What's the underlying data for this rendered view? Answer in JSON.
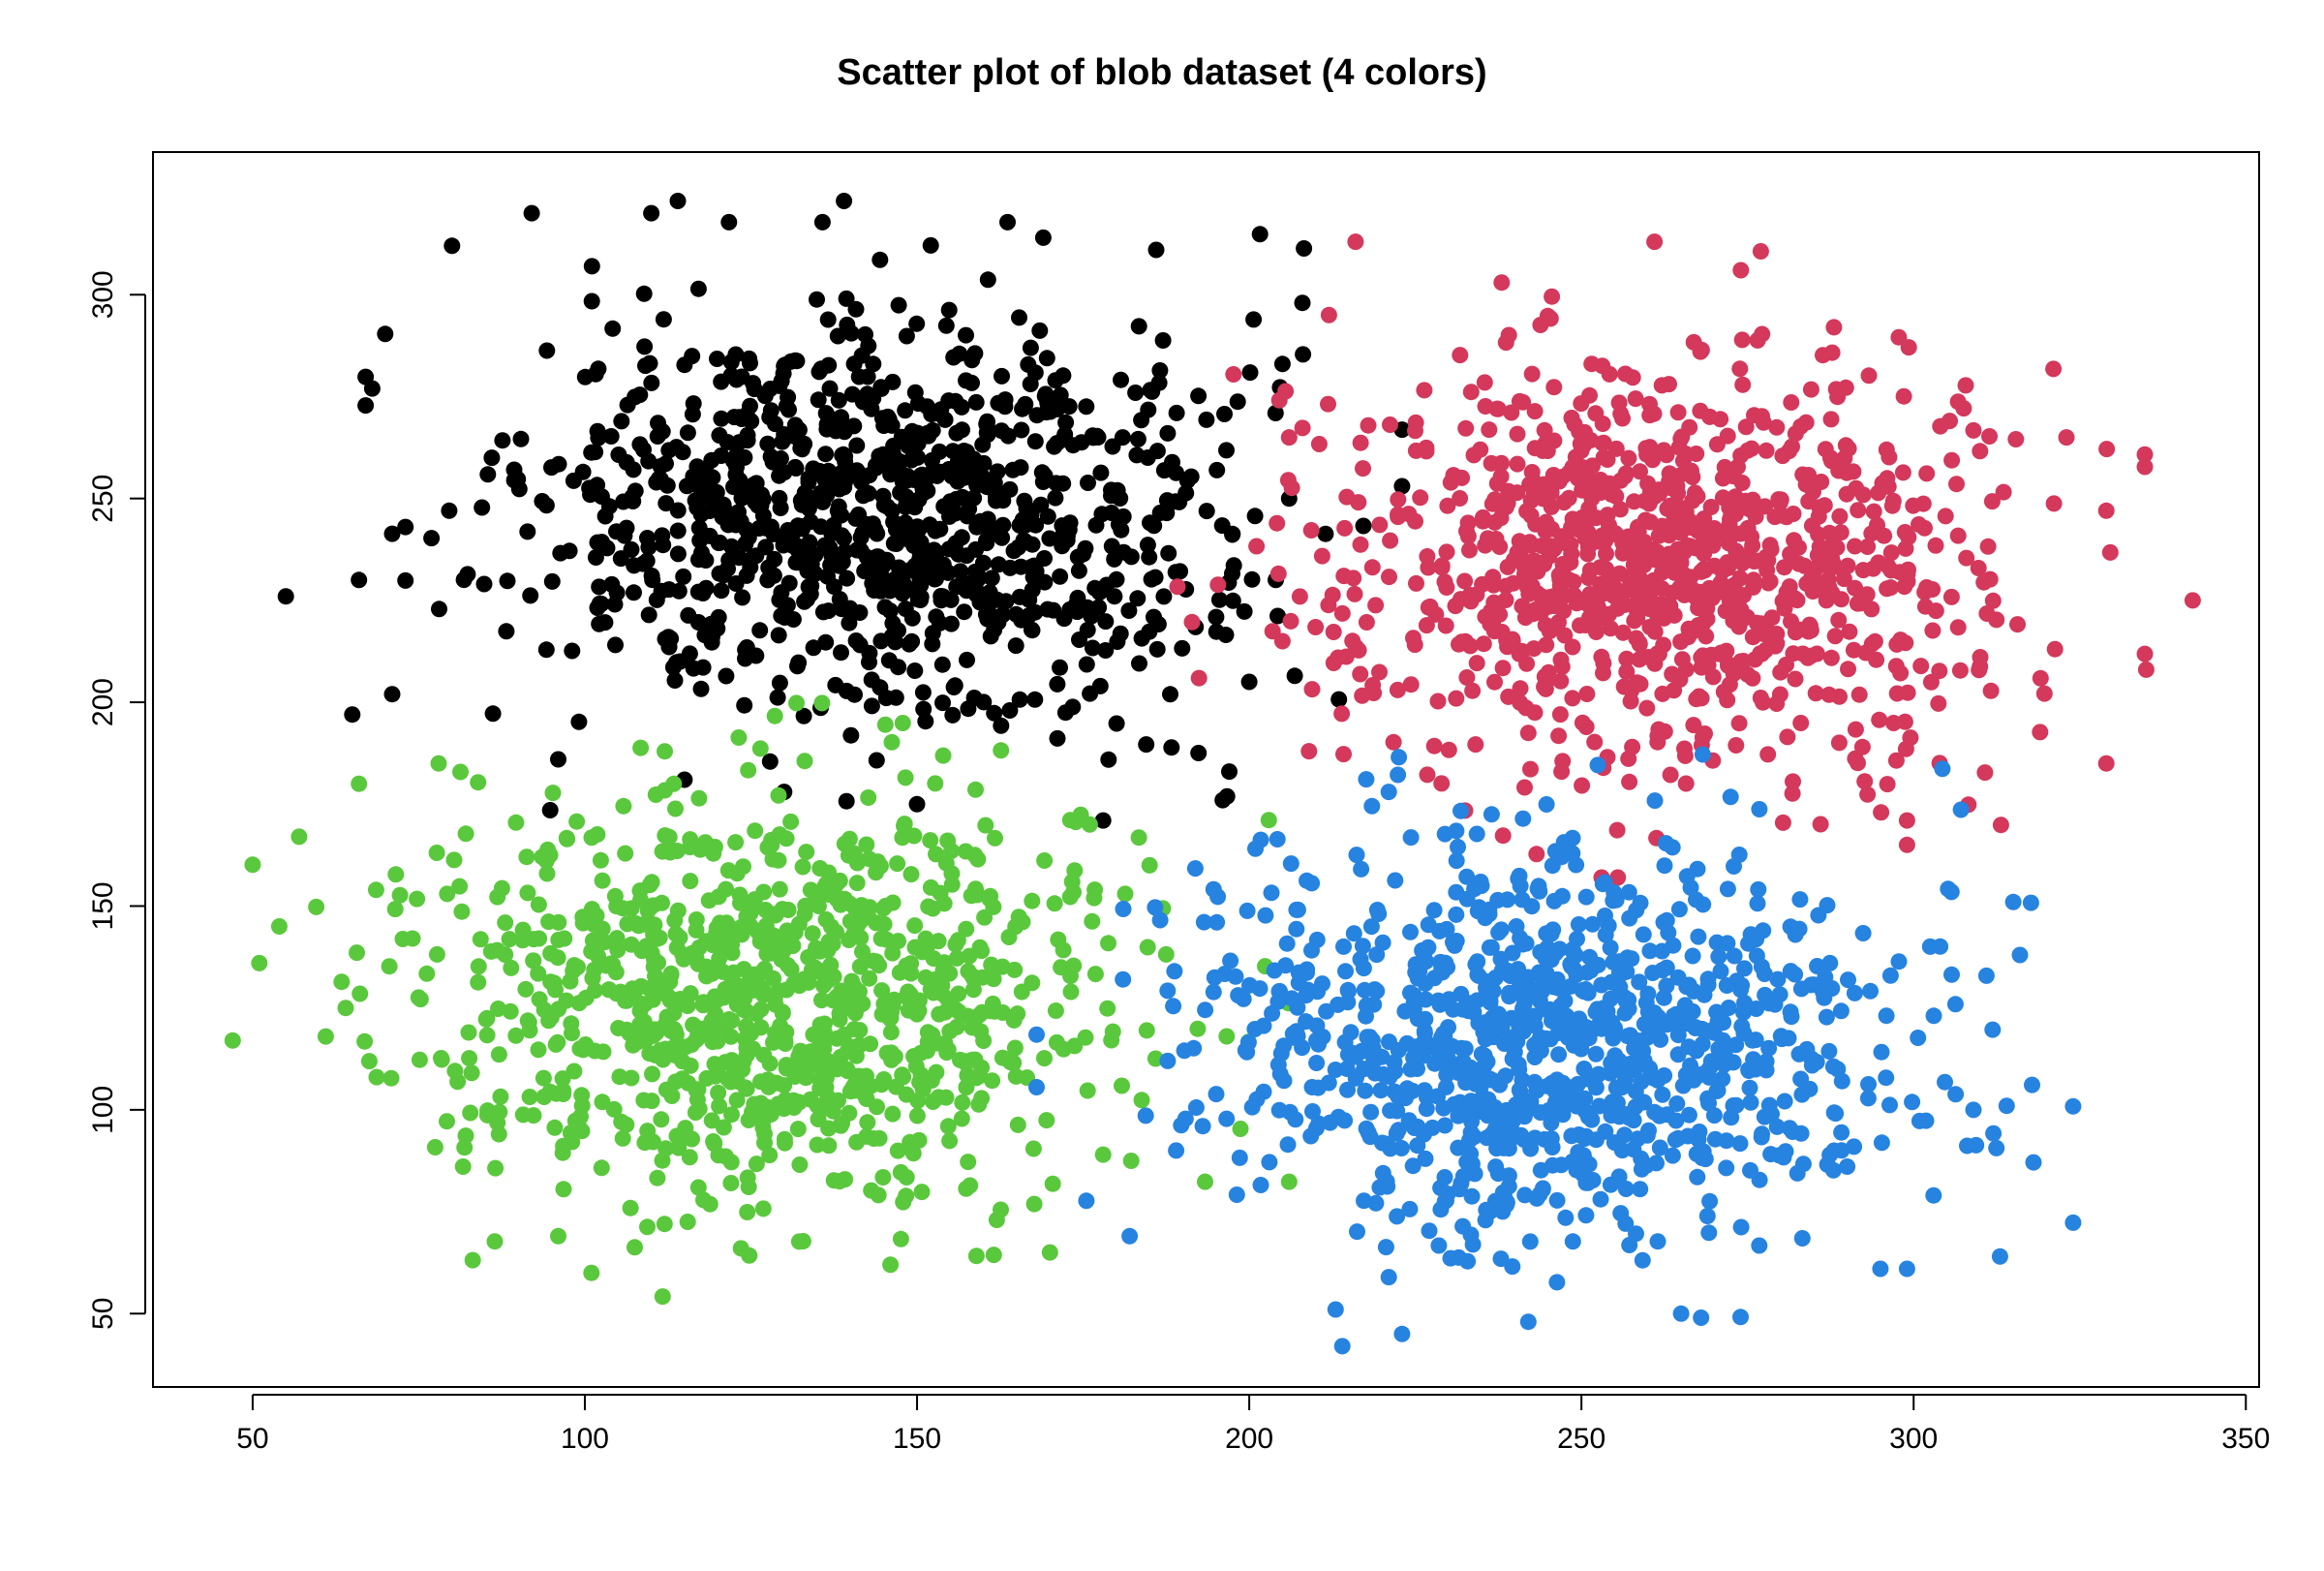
{
  "chart_data": {
    "type": "scatter",
    "title": "Scatter plot of blob dataset (4 colors)",
    "xlabel": "",
    "ylabel": "",
    "xlim": [
      35,
      352
    ],
    "ylim": [
      32,
      335
    ],
    "x_ticks": [
      50,
      100,
      150,
      200,
      250,
      300,
      350
    ],
    "y_ticks": [
      50,
      100,
      150,
      200,
      250,
      300
    ],
    "x_tick_labels": [
      "50",
      "100",
      "150",
      "200",
      "250",
      "300",
      "350"
    ],
    "y_tick_labels": [
      "50",
      "100",
      "150",
      "200",
      "250",
      "300"
    ],
    "grid": false,
    "legend": "none",
    "marker": "filled-circle",
    "series": [
      {
        "color": "#000000",
        "cluster": {
          "center": [
            145,
            245
          ],
          "spread": [
            30,
            28
          ],
          "n": 1000
        },
        "points": [
          [
            55,
            226
          ],
          [
            65,
            197
          ],
          [
            66,
            230
          ],
          [
            68,
            277
          ],
          [
            92,
            320
          ],
          [
            114,
            323
          ],
          [
            139,
            323
          ],
          [
            110,
            320
          ],
          [
            80,
            312
          ],
          [
            169,
            314
          ],
          [
            186,
            311
          ],
          [
            208,
            298
          ],
          [
            205,
            283
          ],
          [
            206,
            250
          ],
          [
            204,
            230
          ],
          [
            200,
            205
          ],
          [
            196,
            176
          ],
          [
            197,
            183
          ],
          [
            178,
            171
          ],
          [
            150,
            175
          ],
          [
            130,
            178
          ],
          [
            115,
            181
          ],
          [
            96,
            186
          ],
          [
            71,
            202
          ],
          [
            73,
            243
          ],
          [
            86,
            260
          ]
        ]
      },
      {
        "color": "#d4385b",
        "cluster": {
          "center": [
            262,
            235
          ],
          "spread": [
            28,
            30
          ],
          "n": 1000
        },
        "points": [
          [
            216,
            313
          ],
          [
            261,
            313
          ],
          [
            274,
            306
          ],
          [
            238,
            303
          ],
          [
            342,
            225
          ],
          [
            335,
            208
          ],
          [
            329,
            185
          ],
          [
            329,
            247
          ],
          [
            323,
            265
          ],
          [
            299,
            165
          ],
          [
            299,
            171
          ],
          [
            247,
            183
          ],
          [
            209,
            188
          ],
          [
            205,
            215
          ],
          [
            206,
            265
          ],
          [
            212,
            295
          ],
          [
            288,
            292
          ]
        ]
      },
      {
        "color": "#5ac83c",
        "cluster": {
          "center": [
            128,
            127
          ],
          "spread": [
            30,
            28
          ],
          "n": 1000
        },
        "points": [
          [
            47,
            117
          ],
          [
            51,
            136
          ],
          [
            54,
            145
          ],
          [
            57,
            167
          ],
          [
            61,
            118
          ],
          [
            64,
            125
          ],
          [
            101,
            60
          ],
          [
            146,
            62
          ],
          [
            170,
            65
          ],
          [
            162,
            73
          ],
          [
            178,
            89
          ],
          [
            185,
            160
          ],
          [
            176,
            170
          ],
          [
            78,
            185
          ],
          [
            66,
            180
          ],
          [
            96,
            69
          ],
          [
            112,
            72
          ]
        ]
      },
      {
        "color": "#2683e0",
        "cluster": {
          "center": [
            246,
            116
          ],
          "spread": [
            30,
            28
          ],
          "n": 1000
        },
        "points": [
          [
            214,
            42
          ],
          [
            223,
            45
          ],
          [
            242,
            48
          ],
          [
            213,
            51
          ],
          [
            265,
            50
          ],
          [
            268,
            49
          ],
          [
            313,
            64
          ],
          [
            316,
            138
          ],
          [
            315,
            151
          ],
          [
            303,
            79
          ],
          [
            314,
            101
          ],
          [
            309,
            100
          ],
          [
            299,
            61
          ],
          [
            295,
            61
          ],
          [
            193,
            96
          ],
          [
            189,
            90
          ],
          [
            181,
            132
          ],
          [
            182,
            69
          ],
          [
            221,
            178
          ]
        ]
      }
    ]
  }
}
